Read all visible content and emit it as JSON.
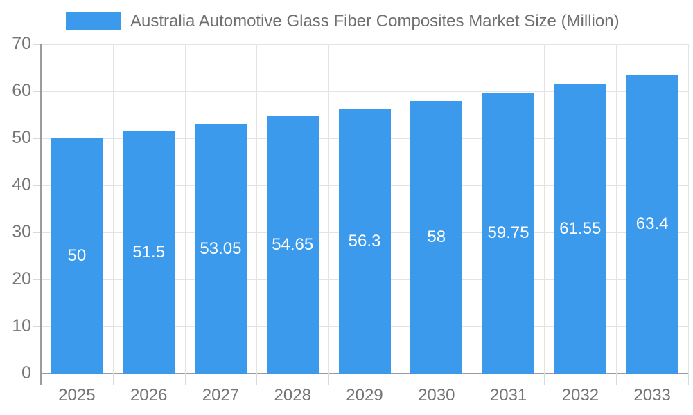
{
  "chart_data": {
    "type": "bar",
    "title": "Australia Automotive Glass Fiber Composites Market Size (Million)",
    "legend": {
      "position": "top",
      "entries": [
        "Australia Automotive Glass Fiber Composites Market Size (Million)"
      ]
    },
    "categories": [
      "2025",
      "2026",
      "2027",
      "2028",
      "2029",
      "2030",
      "2031",
      "2032",
      "2033"
    ],
    "values": [
      50,
      51.5,
      53.05,
      54.65,
      56.3,
      58,
      59.75,
      61.55,
      63.4
    ],
    "bar_labels": [
      "50",
      "51.5",
      "53.05",
      "54.65",
      "56.3",
      "58",
      "59.75",
      "61.55",
      "63.4"
    ],
    "xlabel": "",
    "ylabel": "",
    "ylim": [
      0,
      70
    ],
    "ytick_interval": 10,
    "ytick_labels": [
      "0",
      "10",
      "20",
      "30",
      "40",
      "50",
      "60",
      "70"
    ],
    "grid": true,
    "colors": {
      "bar": "#3B9AEB",
      "bar_label_text": "#FFFFFF",
      "axis_text": "#757575",
      "title_text": "#6F6F6F",
      "gridline": "#E3E3E3",
      "tick": "#D9D9D9",
      "axis_line": "#9B9B9B",
      "background": "#FFFFFF"
    }
  }
}
